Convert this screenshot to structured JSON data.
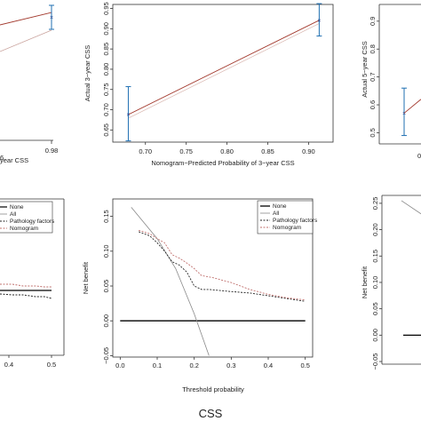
{
  "chart_data": [
    {
      "type": "line",
      "panel": "calibration-left-partial",
      "xticks": [
        "0.98"
      ],
      "xlabel_partial": "year CSS",
      "series": [
        {
          "values": [
            {
              "x": 0.94,
              "y": 0.86
            },
            {
              "x": 0.98,
              "y": 0.94
            }
          ]
        }
      ]
    },
    {
      "type": "line",
      "panel": "calibration-3-year",
      "xlabel": "Nomogram−Predicted Probability of 3−year CSS",
      "ylabel": "Actual 3−year CSS",
      "xlim": [
        0.66,
        0.93
      ],
      "ylim": [
        0.62,
        0.96
      ],
      "xticks": [
        "0.70",
        "0.75",
        "0.80",
        "0.85",
        "0.90"
      ],
      "yticks": [
        "0.65",
        "0.70",
        "0.75",
        "0.80",
        "0.85",
        "0.90",
        "0.95"
      ],
      "points": [
        {
          "x": 0.679,
          "y": 0.688,
          "lower": 0.623,
          "upper": 0.757
        },
        {
          "x": 0.913,
          "y": 0.921,
          "lower": 0.882,
          "upper": 0.962
        }
      ]
    },
    {
      "type": "line",
      "panel": "calibration-5-year-partial",
      "ylabel": "Actual 5−year CSS",
      "yticks": [
        "0.5",
        "0.6",
        "0.7",
        "0.8",
        "0.9"
      ],
      "points": [
        {
          "x": 0.5,
          "y": 0.57,
          "lower": 0.49,
          "upper": 0.66
        }
      ]
    },
    {
      "type": "line",
      "panel": "dca-left-partial",
      "xticks": [
        "0.4",
        "0.5"
      ],
      "legend": [
        "None",
        "All",
        "Pathology factors",
        "Nomogram"
      ]
    },
    {
      "type": "line",
      "panel": "dca-3-year",
      "xlabel": "Threshold probability",
      "ylabel": "Net benefit",
      "xlim": [
        0,
        0.5
      ],
      "ylim": [
        -0.05,
        0.17
      ],
      "xticks": [
        "0.0",
        "0.1",
        "0.2",
        "0.3",
        "0.4",
        "0.5"
      ],
      "yticks": [
        "−0.05",
        "0.00",
        "0.05",
        "0.10",
        "0.15"
      ],
      "legend": [
        "None",
        "All",
        "Pathology factors",
        "Nomogram"
      ],
      "series": [
        {
          "name": "None",
          "values": [
            {
              "x": 0,
              "y": 0
            },
            {
              "x": 0.5,
              "y": 0
            }
          ]
        },
        {
          "name": "All",
          "values": [
            {
              "x": 0.03,
              "y": 0.163
            },
            {
              "x": 0.1,
              "y": 0.118
            },
            {
              "x": 0.15,
              "y": 0.075
            },
            {
              "x": 0.2,
              "y": 0.01
            },
            {
              "x": 0.24,
              "y": -0.05
            }
          ]
        },
        {
          "name": "Pathology factors",
          "values": [
            {
              "x": 0.05,
              "y": 0.128
            },
            {
              "x": 0.08,
              "y": 0.122
            },
            {
              "x": 0.1,
              "y": 0.112
            },
            {
              "x": 0.12,
              "y": 0.1
            },
            {
              "x": 0.14,
              "y": 0.085
            },
            {
              "x": 0.16,
              "y": 0.08
            },
            {
              "x": 0.18,
              "y": 0.07
            },
            {
              "x": 0.2,
              "y": 0.05
            },
            {
              "x": 0.22,
              "y": 0.045
            },
            {
              "x": 0.24,
              "y": 0.045
            },
            {
              "x": 0.3,
              "y": 0.042
            },
            {
              "x": 0.35,
              "y": 0.04
            },
            {
              "x": 0.4,
              "y": 0.036
            },
            {
              "x": 0.45,
              "y": 0.032
            },
            {
              "x": 0.5,
              "y": 0.028
            }
          ]
        },
        {
          "name": "Nomogram",
          "values": [
            {
              "x": 0.05,
              "y": 0.13
            },
            {
              "x": 0.08,
              "y": 0.125
            },
            {
              "x": 0.1,
              "y": 0.118
            },
            {
              "x": 0.12,
              "y": 0.112
            },
            {
              "x": 0.14,
              "y": 0.095
            },
            {
              "x": 0.16,
              "y": 0.09
            },
            {
              "x": 0.18,
              "y": 0.083
            },
            {
              "x": 0.2,
              "y": 0.075
            },
            {
              "x": 0.22,
              "y": 0.065
            },
            {
              "x": 0.25,
              "y": 0.062
            },
            {
              "x": 0.3,
              "y": 0.055
            },
            {
              "x": 0.35,
              "y": 0.045
            },
            {
              "x": 0.4,
              "y": 0.038
            },
            {
              "x": 0.45,
              "y": 0.033
            },
            {
              "x": 0.5,
              "y": 0.03
            }
          ]
        }
      ]
    },
    {
      "type": "line",
      "panel": "dca-5-year-partial",
      "ylabel": "Net benefit",
      "yticks": [
        "−0.05",
        "0.00",
        "0.05",
        "0.10",
        "0.15",
        "0.20",
        "0.25"
      ]
    }
  ],
  "caption": "CSS"
}
